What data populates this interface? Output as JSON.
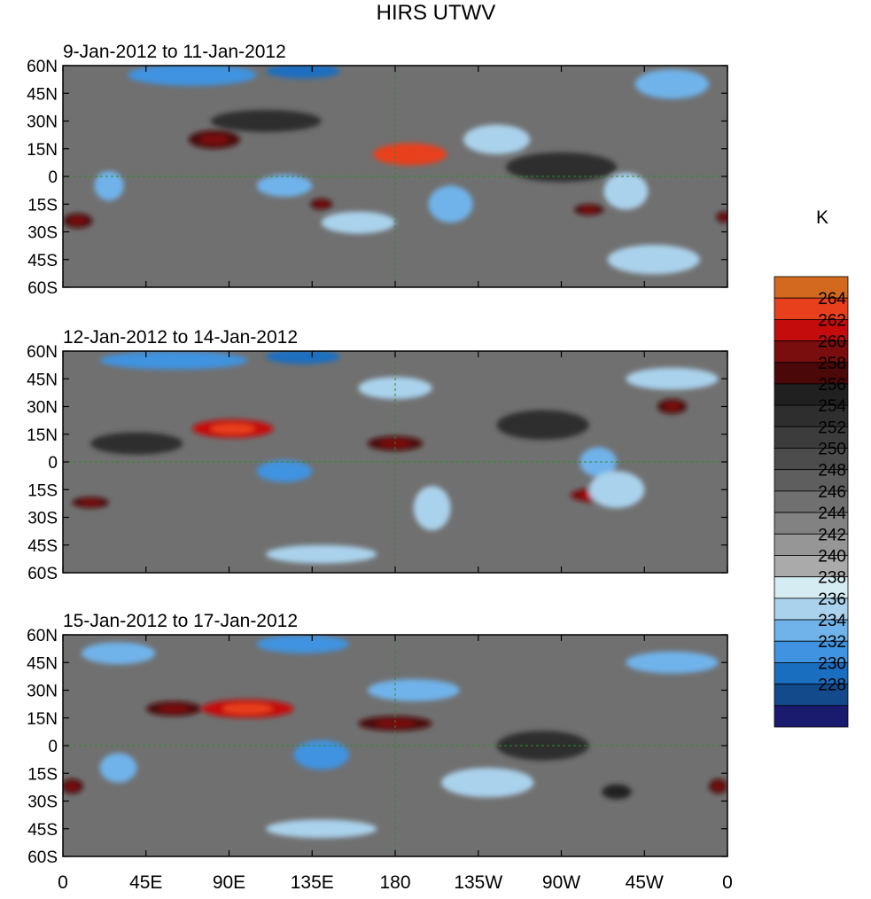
{
  "chart_data": {
    "type": "heatmap",
    "title": "HIRS UTWV",
    "units": "K",
    "x_ticks": [
      "0",
      "45E",
      "90E",
      "135E",
      "180",
      "135W",
      "90W",
      "45W",
      "0"
    ],
    "x_range_deg_east": [
      0,
      360
    ],
    "y_ticks": [
      "60N",
      "45N",
      "30N",
      "15N",
      "0",
      "15S",
      "30S",
      "45S",
      "60S"
    ],
    "y_range_deg": [
      -60,
      60
    ],
    "colorbar": {
      "levels": [
        228,
        230,
        232,
        234,
        236,
        238,
        240,
        242,
        244,
        246,
        248,
        250,
        252,
        254,
        256,
        258,
        260,
        262,
        264
      ],
      "labels": [
        "264",
        "262",
        "260",
        "258",
        "256",
        "254",
        "252",
        "250",
        "248",
        "246",
        "244",
        "242",
        "240",
        "238",
        "236",
        "234",
        "232",
        "230",
        "228"
      ],
      "colors": [
        "#1a1a6e",
        "#124a8c",
        "#1a6ec0",
        "#3f93e0",
        "#6fb3ea",
        "#aad2ec",
        "#d4ecf2",
        "#aaaaaa",
        "#969696",
        "#828282",
        "#707070",
        "#5e5e5e",
        "#4c4c4c",
        "#3c3c3c",
        "#2e2e2e",
        "#202020",
        "#4a0808",
        "#7a0e0e",
        "#c40c0c",
        "#e8401c",
        "#d2691e"
      ]
    },
    "panels": [
      {
        "subtitle": "9-Jan-2012 to 11-Jan-2012",
        "features": [
          {
            "lon": 188,
            "lat": 12,
            "value": 264,
            "rx": 20,
            "ry": 6
          },
          {
            "lon": 82,
            "lat": 20,
            "value": 258,
            "rx": 14,
            "ry": 5
          },
          {
            "lon": 140,
            "lat": -15,
            "value": 258,
            "rx": 6,
            "ry": 3
          },
          {
            "lon": 285,
            "lat": -18,
            "value": 258,
            "rx": 8,
            "ry": 3
          },
          {
            "lon": 8,
            "lat": -24,
            "value": 258,
            "rx": 8,
            "ry": 4
          },
          {
            "lon": 358,
            "lat": -22,
            "value": 258,
            "rx": 4,
            "ry": 3
          },
          {
            "lon": 270,
            "lat": 5,
            "value": 254,
            "rx": 30,
            "ry": 8
          },
          {
            "lon": 110,
            "lat": 30,
            "value": 254,
            "rx": 30,
            "ry": 6
          },
          {
            "lon": 70,
            "lat": 55,
            "value": 232,
            "rx": 35,
            "ry": 6
          },
          {
            "lon": 130,
            "lat": 57,
            "value": 230,
            "rx": 20,
            "ry": 4
          },
          {
            "lon": 330,
            "lat": 50,
            "value": 234,
            "rx": 20,
            "ry": 8
          },
          {
            "lon": 210,
            "lat": -15,
            "value": 234,
            "rx": 12,
            "ry": 10
          },
          {
            "lon": 235,
            "lat": 20,
            "value": 236,
            "rx": 18,
            "ry": 8
          },
          {
            "lon": 305,
            "lat": -8,
            "value": 236,
            "rx": 12,
            "ry": 10
          },
          {
            "lon": 25,
            "lat": -5,
            "value": 234,
            "rx": 8,
            "ry": 8
          },
          {
            "lon": 120,
            "lat": -5,
            "value": 234,
            "rx": 15,
            "ry": 6
          },
          {
            "lon": 160,
            "lat": -25,
            "value": 236,
            "rx": 20,
            "ry": 6
          },
          {
            "lon": 320,
            "lat": -45,
            "value": 236,
            "rx": 25,
            "ry": 8
          }
        ]
      },
      {
        "subtitle": "12-Jan-2012 to 14-Jan-2012",
        "features": [
          {
            "lon": 92,
            "lat": 18,
            "value": 262,
            "rx": 22,
            "ry": 5
          },
          {
            "lon": 180,
            "lat": 10,
            "value": 258,
            "rx": 15,
            "ry": 4
          },
          {
            "lon": 290,
            "lat": -18,
            "value": 260,
            "rx": 15,
            "ry": 4
          },
          {
            "lon": 15,
            "lat": -22,
            "value": 258,
            "rx": 10,
            "ry": 3
          },
          {
            "lon": 330,
            "lat": 30,
            "value": 258,
            "rx": 8,
            "ry": 4
          },
          {
            "lon": 260,
            "lat": 20,
            "value": 254,
            "rx": 25,
            "ry": 8
          },
          {
            "lon": 40,
            "lat": 10,
            "value": 254,
            "rx": 25,
            "ry": 6
          },
          {
            "lon": 60,
            "lat": 55,
            "value": 232,
            "rx": 40,
            "ry": 5
          },
          {
            "lon": 130,
            "lat": 57,
            "value": 230,
            "rx": 20,
            "ry": 4
          },
          {
            "lon": 120,
            "lat": -5,
            "value": 232,
            "rx": 15,
            "ry": 6
          },
          {
            "lon": 290,
            "lat": 0,
            "value": 234,
            "rx": 10,
            "ry": 8
          },
          {
            "lon": 300,
            "lat": -15,
            "value": 236,
            "rx": 15,
            "ry": 10
          },
          {
            "lon": 200,
            "lat": -25,
            "value": 236,
            "rx": 10,
            "ry": 12
          },
          {
            "lon": 180,
            "lat": 40,
            "value": 236,
            "rx": 20,
            "ry": 6
          },
          {
            "lon": 330,
            "lat": 45,
            "value": 236,
            "rx": 25,
            "ry": 6
          },
          {
            "lon": 140,
            "lat": -50,
            "value": 236,
            "rx": 30,
            "ry": 5
          }
        ]
      },
      {
        "subtitle": "15-Jan-2012 to 17-Jan-2012",
        "features": [
          {
            "lon": 100,
            "lat": 20,
            "value": 262,
            "rx": 25,
            "ry": 5
          },
          {
            "lon": 180,
            "lat": 12,
            "value": 258,
            "rx": 20,
            "ry": 4
          },
          {
            "lon": 60,
            "lat": 20,
            "value": 258,
            "rx": 15,
            "ry": 4
          },
          {
            "lon": 5,
            "lat": -22,
            "value": 258,
            "rx": 6,
            "ry": 4
          },
          {
            "lon": 355,
            "lat": -22,
            "value": 258,
            "rx": 5,
            "ry": 4
          },
          {
            "lon": 300,
            "lat": -25,
            "value": 256,
            "rx": 8,
            "ry": 4
          },
          {
            "lon": 260,
            "lat": 0,
            "value": 254,
            "rx": 25,
            "ry": 8
          },
          {
            "lon": 130,
            "lat": 55,
            "value": 232,
            "rx": 25,
            "ry": 5
          },
          {
            "lon": 30,
            "lat": 50,
            "value": 234,
            "rx": 20,
            "ry": 6
          },
          {
            "lon": 190,
            "lat": 30,
            "value": 234,
            "rx": 25,
            "ry": 6
          },
          {
            "lon": 140,
            "lat": -5,
            "value": 232,
            "rx": 15,
            "ry": 8
          },
          {
            "lon": 30,
            "lat": -12,
            "value": 234,
            "rx": 10,
            "ry": 8
          },
          {
            "lon": 230,
            "lat": -20,
            "value": 236,
            "rx": 25,
            "ry": 8
          },
          {
            "lon": 330,
            "lat": 45,
            "value": 234,
            "rx": 25,
            "ry": 6
          },
          {
            "lon": 140,
            "lat": -45,
            "value": 236,
            "rx": 30,
            "ry": 5
          }
        ]
      }
    ]
  }
}
